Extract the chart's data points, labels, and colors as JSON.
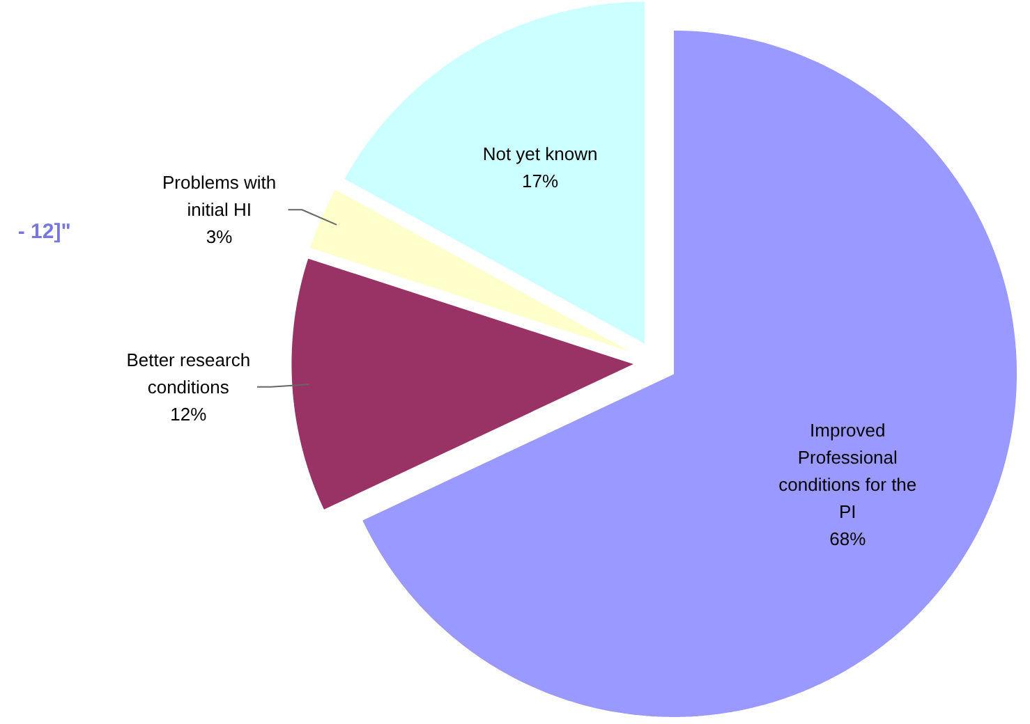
{
  "chart_data": {
    "type": "pie",
    "categories": [
      "Improved\nProfessional\nconditions for the\nPI",
      "Better research\nconditions",
      "Problems with\ninitial HI",
      "Not yet known"
    ],
    "values": [
      68,
      12,
      3,
      17
    ],
    "colors": [
      "#9999ff",
      "#993366",
      "#ffffcc",
      "#ccffff"
    ],
    "value_labels": [
      "68%",
      "12%",
      "3%",
      "17%"
    ],
    "annotations": [
      "- 12]\""
    ]
  }
}
